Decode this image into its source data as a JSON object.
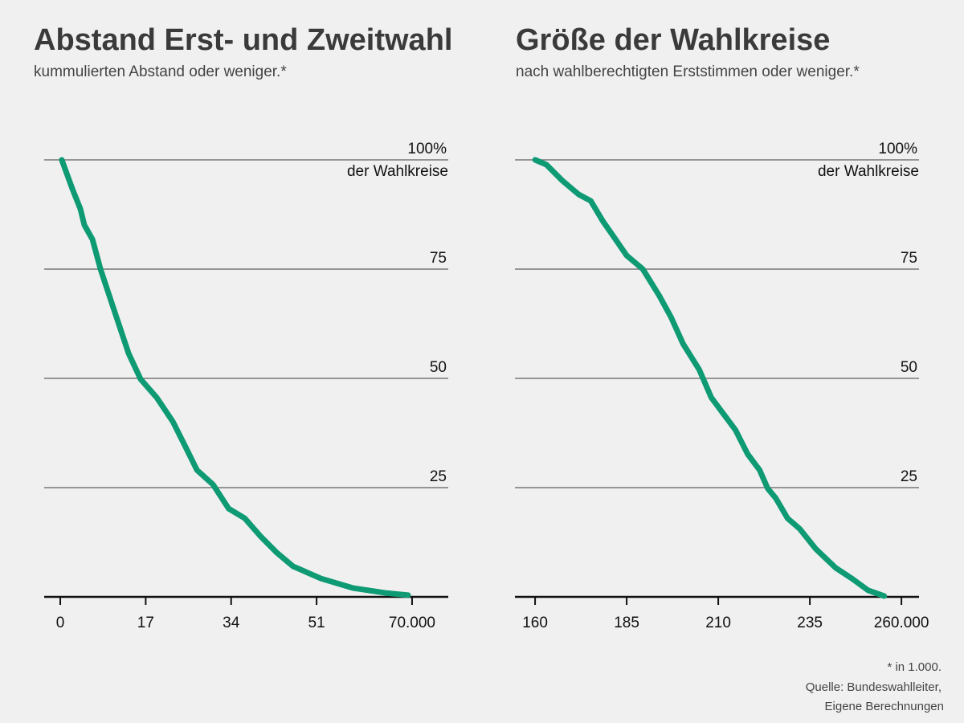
{
  "chart_data": [
    {
      "type": "line",
      "title": "Abstand Erst- und Zweitwahl",
      "subtitle": "kummulierten Abstand oder weniger.*",
      "ylabel": "der Wahlkreise",
      "color": "#0e9a73",
      "x": [
        0.3,
        2.4,
        4.0,
        4.8,
        6.4,
        8.0,
        10.4,
        12.0,
        13.6,
        16.0,
        19.2,
        22.4,
        24.8,
        27.2,
        30.4,
        33.5,
        36.7,
        39.9,
        43.1,
        46.3,
        51.9,
        58.3,
        64.7,
        69.2
      ],
      "values": [
        100,
        93.4,
        88.8,
        85.1,
        81.8,
        75,
        66.7,
        61.2,
        55.7,
        49.8,
        45.6,
        40.1,
        34.6,
        29.0,
        25.7,
        20.2,
        18.0,
        13.8,
        10.1,
        7.0,
        4.2,
        2.0,
        0.9,
        0.4
      ],
      "xlim": [
        -3.2,
        77.2
      ],
      "xticks": [
        0,
        17,
        34,
        51,
        {
          "value": 70,
          "label": "70.000"
        }
      ],
      "ylim": [
        0,
        100
      ],
      "yticks": [
        25,
        50,
        75,
        {
          "value": 100,
          "label": "100%"
        }
      ],
      "grid": true
    },
    {
      "type": "line",
      "title": "Größe der Wahlkreise",
      "subtitle": "nach wahlberechtigten Erststimmen oder weniger.*",
      "ylabel": "der Wahlkreise",
      "color": "#0e9a73",
      "x": [
        160,
        163.1,
        167.5,
        171.9,
        175.2,
        178.5,
        181.8,
        185,
        189.4,
        193.9,
        197.1,
        200.4,
        204.8,
        208.1,
        211.4,
        214.7,
        218.0,
        221.3,
        223.5,
        225.7,
        228.9,
        232.2,
        236.6,
        242.1,
        246.5,
        250.9,
        255.3
      ],
      "values": [
        100,
        98.9,
        95.2,
        92.1,
        90.6,
        86.0,
        82.0,
        78.1,
        75,
        68.9,
        64.0,
        57.9,
        52.0,
        45.6,
        41.9,
        38.2,
        32.7,
        29.0,
        24.8,
        22.6,
        18.0,
        15.6,
        11.0,
        6.6,
        4.2,
        1.5,
        0.2
      ],
      "xlim": [
        154.5,
        264.8
      ],
      "xticks": [
        160,
        185,
        210,
        235,
        {
          "value": 260,
          "label": "260.000"
        }
      ],
      "ylim": [
        0,
        100
      ],
      "yticks": [
        25,
        50,
        75,
        {
          "value": 100,
          "label": "100%"
        }
      ],
      "grid": true
    }
  ],
  "notes": [
    "* in 1.000.",
    "Quelle: Bundeswahlleiter,",
    "Eigene Berechnungen"
  ]
}
